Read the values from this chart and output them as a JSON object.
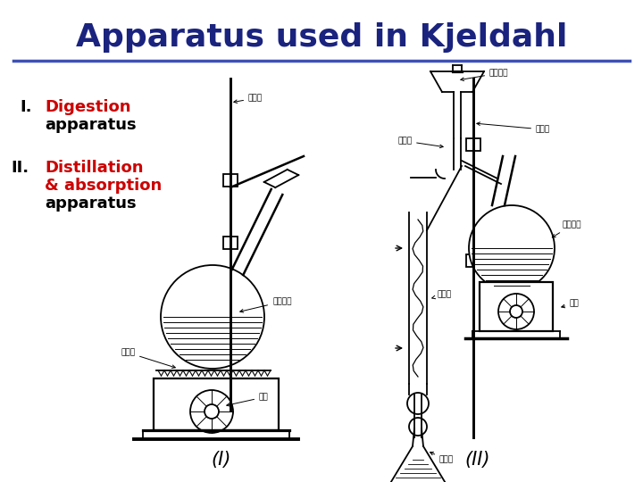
{
  "title": "Apparatus used in Kjeldahl",
  "title_color": "#1a237e",
  "title_fontsize": 26,
  "separator_color": "#3f51b5",
  "label_I_roman": "I.",
  "label_I_text": "Digestion",
  "label_I_text2": "apparatus",
  "label_I_color": "#cc0000",
  "label_I_black": "#000000",
  "label_II_roman": "II.",
  "label_II_text": "Distillation",
  "label_II_text2": "& absorption",
  "label_II_text3": "apparatus",
  "label_II_color": "#cc0000",
  "label_II_black": "#000000",
  "caption_I": "(I)",
  "caption_II": "(II)",
  "background_color": "#ffffff",
  "mono_font": "Courier New",
  "serif_font": "Times New Roman",
  "label_fontsize": 13,
  "caption_fontsize": 15,
  "annot_fontsize": 6.5
}
